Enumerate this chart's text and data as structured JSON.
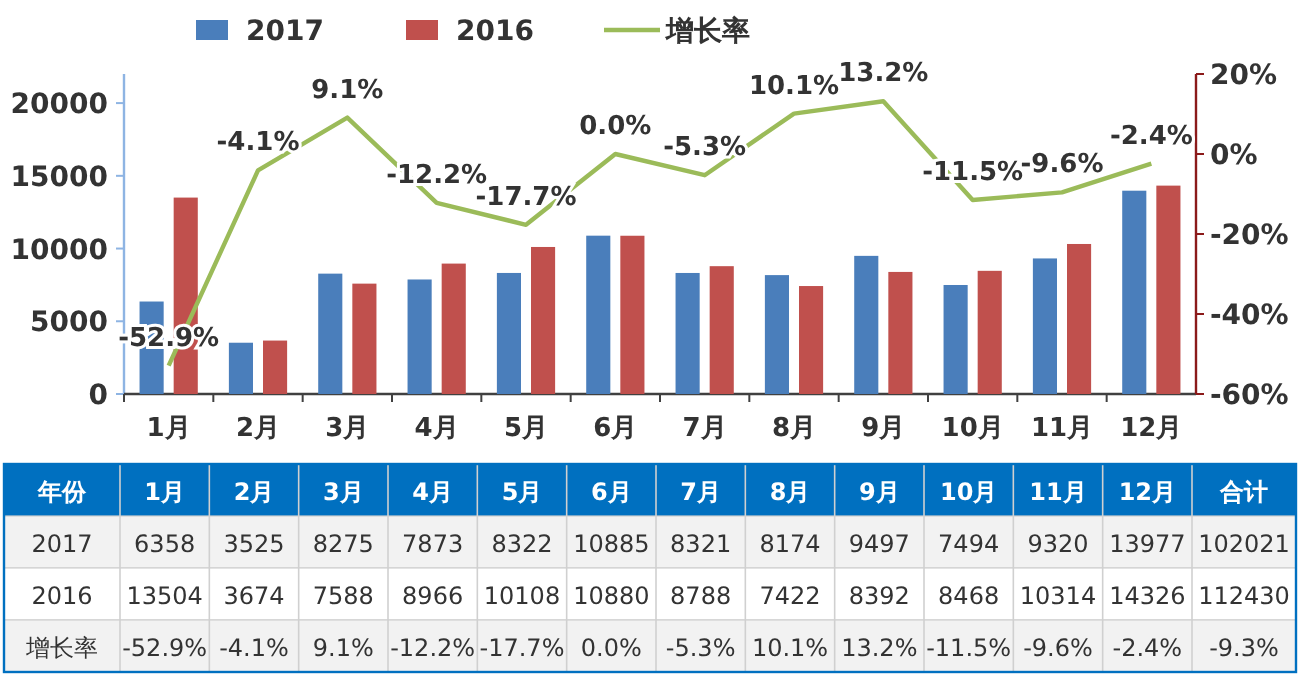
{
  "chart_data": {
    "type": "bar",
    "categories": [
      "1月",
      "2月",
      "3月",
      "4月",
      "5月",
      "6月",
      "7月",
      "8月",
      "9月",
      "10月",
      "11月",
      "12月"
    ],
    "series": [
      {
        "name": "2017",
        "color": "#4a7ebb",
        "values": [
          6358,
          3525,
          8275,
          7873,
          8322,
          10885,
          8321,
          8174,
          9497,
          7494,
          9320,
          13977
        ],
        "value_labels": [
          "6358",
          "3525",
          "8275",
          "7873",
          "8322",
          "10885",
          "8321",
          "8174",
          "9497",
          "7494",
          "9320",
          "13977"
        ]
      },
      {
        "name": "2016",
        "color": "#c0504d",
        "values": [
          13504,
          3674,
          7588,
          8966,
          10108,
          10880,
          8788,
          7422,
          8392,
          8468,
          10314,
          14326
        ],
        "value_labels": [
          "13504",
          "3674",
          "7588",
          "8966",
          "10108",
          "10880",
          "8788",
          "7422",
          "8392",
          "8468",
          "10314",
          "14326"
        ]
      },
      {
        "name": "增长率",
        "type": "line",
        "axis": "y2",
        "color": "#9bbb59",
        "values": [
          -52.9,
          -4.1,
          9.1,
          -12.2,
          -17.7,
          0.0,
          -5.3,
          10.1,
          13.2,
          -11.5,
          -9.6,
          -2.4
        ],
        "value_labels": [
          "-52.9%",
          "-4.1%",
          "9.1%",
          "-12.2%",
          "-17.7%",
          "0.0%",
          "-5.3%",
          "10.1%",
          "13.2%",
          "-11.5%",
          "-9.6%",
          "-2.4%"
        ]
      }
    ],
    "ylim": [
      0,
      22000
    ],
    "yticks": [
      0,
      5000,
      10000,
      15000,
      20000
    ],
    "y2lim": [
      -60,
      20
    ],
    "y2ticks": [
      {
        "value": -60,
        "label": "-60%"
      },
      {
        "value": -40,
        "label": "-40%"
      },
      {
        "value": -20,
        "label": "-20%"
      },
      {
        "value": 0,
        "label": "0%"
      },
      {
        "value": 20,
        "label": "20%"
      }
    ],
    "legend": "top",
    "annotations": [
      "年份",
      "合计",
      "102021",
      "112430",
      "-9.3%"
    ]
  }
}
